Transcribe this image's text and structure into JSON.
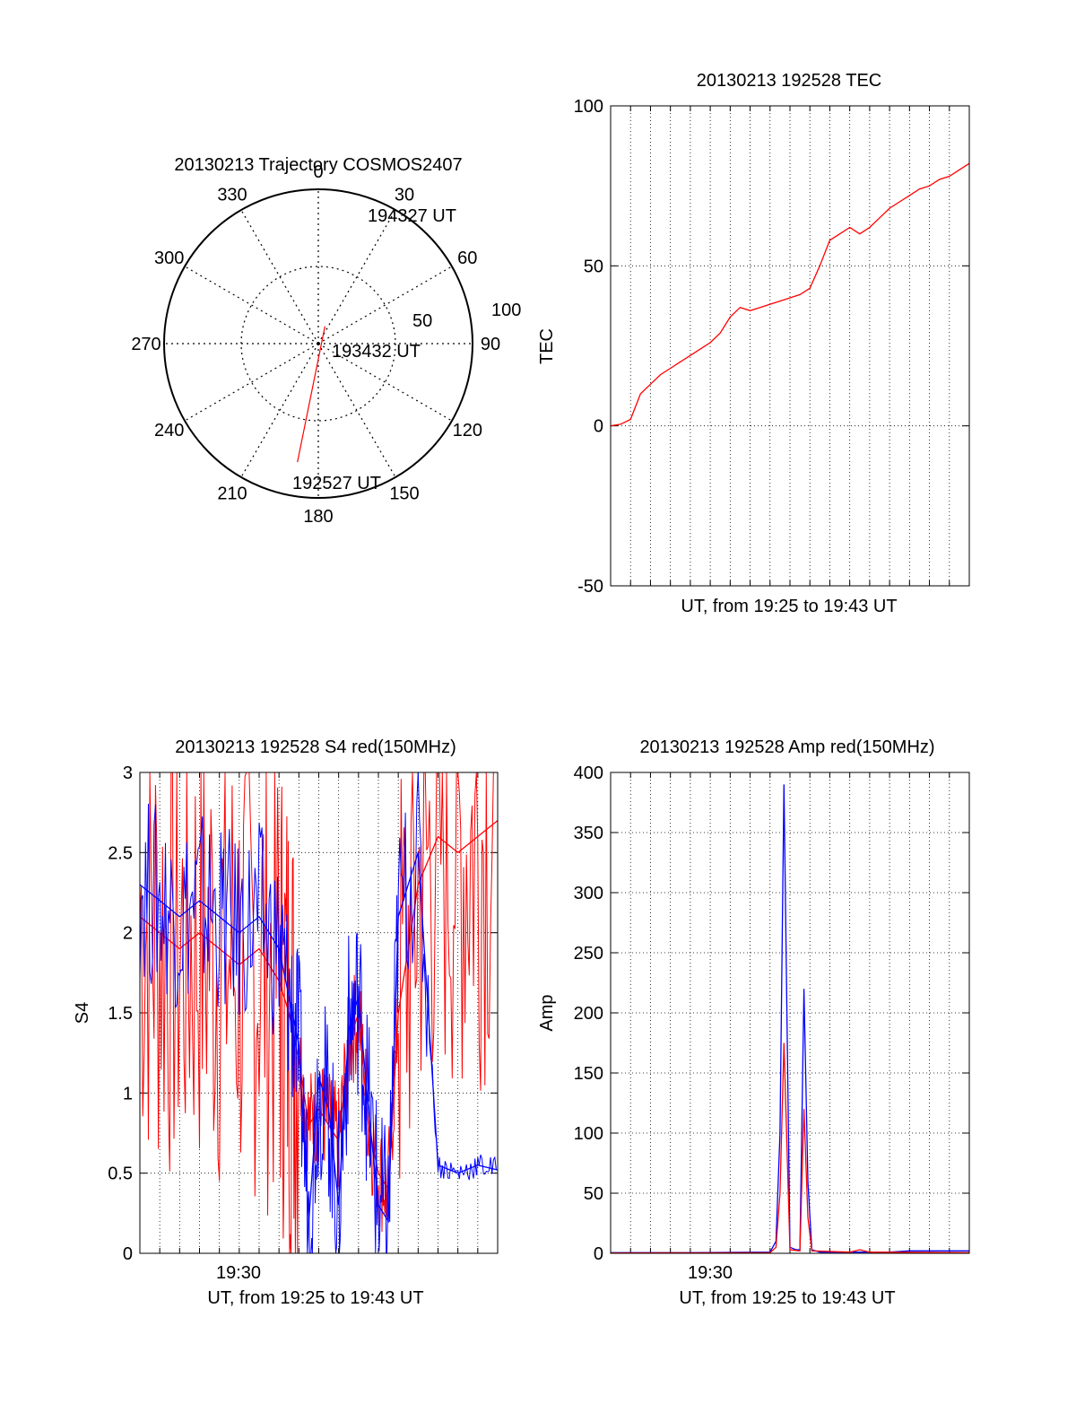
{
  "colors": {
    "red": "#ff0000",
    "blue": "#0000ff",
    "axis": "#000000",
    "grid": "#000000"
  },
  "chart_data": [
    {
      "type": "polar",
      "title": "20130213 Trajectory COSMOS2407",
      "angle_labels": [
        "0",
        "30",
        "60",
        "90",
        "120",
        "150",
        "180",
        "210",
        "240",
        "270",
        "300",
        "330"
      ],
      "radial_labels": [
        "50",
        "100"
      ],
      "rlim": [
        0,
        100
      ],
      "grid": true,
      "track": {
        "color": "#ff0000",
        "start": {
          "azimuth": 190,
          "elevation": 78,
          "label": "192527 UT"
        },
        "end": {
          "azimuth": 21,
          "elevation": 12,
          "label": "194327 UT"
        },
        "peak_label": "193432 UT"
      }
    },
    {
      "type": "line",
      "title": "20130213 192528 TEC",
      "xlabel": "UT, from 19:25 to 19:43 UT",
      "ylabel": "TEC",
      "ylim": [
        -50,
        100
      ],
      "yticks": [
        "-50",
        "0",
        "50",
        "100"
      ],
      "xlim": [
        0,
        18
      ],
      "grid": true,
      "series": [
        {
          "color": "#ff0000",
          "x": [
            0,
            0.5,
            1.0,
            1.5,
            2.0,
            2.5,
            3.0,
            3.5,
            4.0,
            4.5,
            5.0,
            5.5,
            6.0,
            6.5,
            7.0,
            7.5,
            8.0,
            8.5,
            9.0,
            9.5,
            10.0,
            10.5,
            11.0,
            11.5,
            12.0,
            12.5,
            13.0,
            13.5,
            14.0,
            14.5,
            15.0,
            15.5,
            16.0,
            16.5,
            17.0,
            17.5,
            18.0
          ],
          "y": [
            0,
            0.5,
            2,
            10,
            13,
            16,
            18,
            20,
            22,
            24,
            26,
            29,
            34,
            37,
            36,
            37,
            38,
            39,
            40,
            41,
            43,
            50,
            58,
            60,
            62,
            60,
            62,
            65,
            68,
            70,
            72,
            74,
            75,
            77,
            78,
            80,
            82
          ]
        }
      ]
    },
    {
      "type": "line",
      "title": "20130213 192528 S4 red(150MHz)",
      "xlabel": "UT, from 19:25 to 19:43 UT",
      "ylabel": "S4",
      "ylim": [
        0,
        3
      ],
      "yticks": [
        "0",
        "0.5",
        "1",
        "1.5",
        "2",
        "2.5",
        "3"
      ],
      "xlim": [
        0,
        18
      ],
      "xtick_labels": [
        {
          "x": 5,
          "label": "19:30"
        }
      ],
      "grid": true,
      "series": [
        {
          "color": "#ff0000",
          "x": [
            0,
            1,
            2,
            3,
            4,
            5,
            6,
            7,
            7.5,
            8,
            8.5,
            9,
            9.5,
            10,
            10.5,
            11,
            11.5,
            12,
            12.5,
            13,
            14,
            15,
            16,
            17,
            18
          ],
          "y": [
            2.1,
            2.0,
            1.9,
            2.0,
            1.9,
            1.8,
            1.9,
            1.7,
            1.5,
            1.2,
            0.8,
            0.9,
            0.8,
            0.7,
            1.3,
            1.5,
            0.8,
            0.5,
            0.4,
            1.5,
            2.3,
            2.6,
            2.5,
            2.6,
            2.7
          ]
        },
        {
          "color": "#0000ff",
          "x": [
            0,
            1,
            2,
            3,
            4,
            5,
            6,
            7,
            7.5,
            8,
            8.5,
            9,
            9.5,
            10,
            10.5,
            11,
            11.5,
            12,
            12.5,
            13,
            14,
            15,
            16,
            17,
            18
          ],
          "y": [
            2.3,
            2.2,
            2.1,
            2.2,
            2.1,
            2.0,
            2.1,
            1.9,
            1.6,
            1.3,
            0.2,
            1.1,
            0.9,
            0.3,
            1.4,
            1.6,
            0.9,
            0.3,
            0.2,
            2.1,
            2.5,
            0.55,
            0.5,
            0.55,
            0.52
          ]
        }
      ]
    },
    {
      "type": "line",
      "title": "20130213 192528 Amp red(150MHz)",
      "xlabel": "UT, from 19:25 to 19:43 UT",
      "ylabel": "Amp",
      "ylim": [
        0,
        400
      ],
      "yticks": [
        "0",
        "50",
        "100",
        "150",
        "200",
        "250",
        "300",
        "350",
        "400"
      ],
      "xlim": [
        0,
        18
      ],
      "xtick_labels": [
        {
          "x": 5,
          "label": "19:30"
        }
      ],
      "grid": true,
      "series": [
        {
          "color": "#0000ff",
          "x": [
            0,
            4,
            8.0,
            8.3,
            8.5,
            8.7,
            9.0,
            9.3,
            9.5,
            9.7,
            9.9,
            10.1,
            10.5,
            14,
            15,
            18
          ],
          "y": [
            0.5,
            0.5,
            1,
            10,
            100,
            390,
            5,
            3,
            3,
            220,
            60,
            3,
            1,
            1,
            2,
            2
          ]
        },
        {
          "color": "#ff0000",
          "x": [
            0,
            8.0,
            8.3,
            8.5,
            8.7,
            9.0,
            9.5,
            9.7,
            9.9,
            10.1,
            12,
            12.5,
            13,
            18
          ],
          "y": [
            0.3,
            0.5,
            5,
            50,
            175,
            3,
            2,
            120,
            30,
            2,
            1,
            3,
            1,
            0.5
          ]
        }
      ]
    }
  ]
}
